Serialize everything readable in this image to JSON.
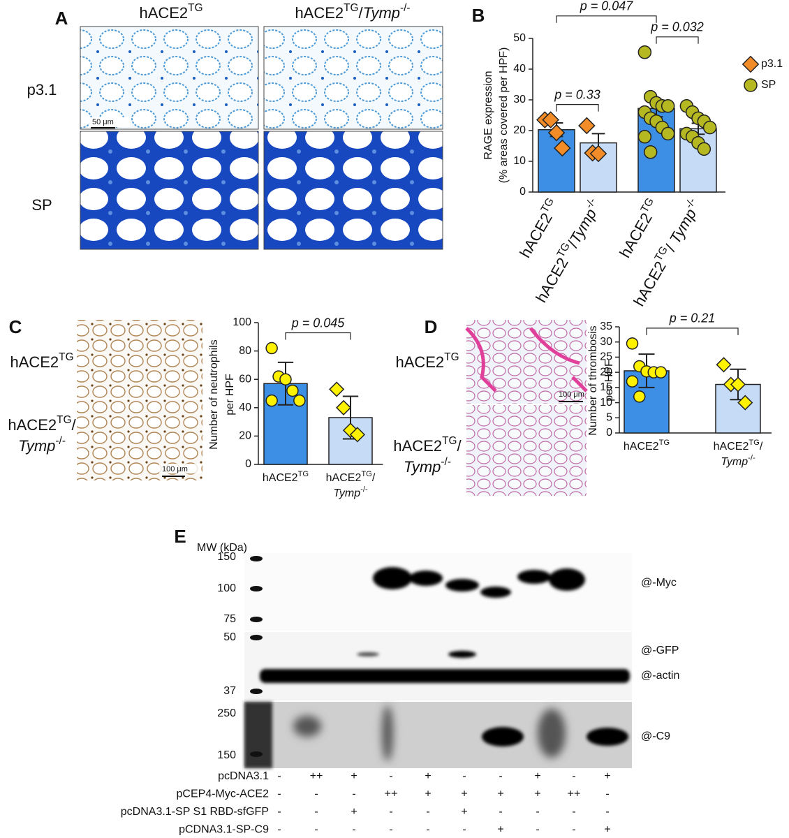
{
  "panel_a": {
    "letter": "A",
    "columns": [
      [
        [
          {
            "text": "hACE2"
          },
          {
            "text": "TG",
            "style": "sup"
          }
        ]
      ],
      [
        [
          {
            "text": "hACE2"
          },
          {
            "text": "TG",
            "style": "sup"
          },
          {
            "text": "/"
          },
          {
            "text": "Tymp",
            "style": "italic"
          },
          {
            "text": "-/-",
            "style": "sup"
          }
        ]
      ]
    ],
    "rows": [
      "p3.1",
      "SP"
    ],
    "scale_bar": "50 μm"
  },
  "panel_c": {
    "letter": "C",
    "rows": [
      [
        [
          {
            "text": "hACE2"
          },
          {
            "text": "TG",
            "style": "sup"
          }
        ]
      ],
      [
        [
          {
            "text": "hACE2"
          },
          {
            "text": "TG",
            "style": "sup"
          },
          {
            "text": "/"
          }
        ],
        [
          {
            "text": "Tymp",
            "style": "italic"
          },
          {
            "text": "-/-",
            "style": "sup"
          }
        ]
      ]
    ],
    "scale_bar": "100 μm"
  },
  "panel_d": {
    "letter": "D",
    "rows": [
      [
        [
          {
            "text": "hACE2"
          },
          {
            "text": "TG",
            "style": "sup"
          }
        ]
      ],
      [
        [
          {
            "text": "hACE2"
          },
          {
            "text": "TG",
            "style": "sup"
          },
          {
            "text": "/"
          }
        ],
        [
          {
            "text": "Tymp",
            "style": "italic"
          },
          {
            "text": "-/-",
            "style": "sup"
          }
        ]
      ]
    ],
    "scale_bar": "100 μm"
  },
  "panel_e": {
    "letter": "E",
    "mw_title": "MW (kDa)",
    "markers": [
      150,
      100,
      75,
      50,
      37,
      250,
      150
    ],
    "blots": [
      "@-Myc",
      "@-GFP",
      "@-actin",
      "@-C9"
    ],
    "conditions": [
      {
        "name": "pcDNA3.1",
        "marks": [
          "-",
          "++",
          "+",
          "-",
          "+",
          "-",
          "-",
          "+",
          "-",
          "+"
        ]
      },
      {
        "name": "pCEP4-Myc-ACE2",
        "marks": [
          "-",
          "-",
          "-",
          "++",
          "+",
          "+",
          "+",
          "+",
          "++",
          "-"
        ]
      },
      {
        "name": "pcDNA3.1-SP S1 RBD-sfGFP",
        "marks": [
          "-",
          "-",
          "+",
          "-",
          "-",
          "+",
          "-",
          "-",
          "-",
          "-"
        ]
      },
      {
        "name": "pCDNA3.1-SP-C9",
        "marks": [
          "-",
          "-",
          "-",
          "-",
          "-",
          "-",
          "+",
          "-",
          "-",
          "+"
        ]
      }
    ]
  },
  "chart_data": [
    {
      "type": "bar_dot",
      "letter": "B",
      "ylabel": [
        "RAGE expression",
        "(% areas covered per HPF)"
      ],
      "categories": [
        [
          [
            {
              "text": "hACE2"
            },
            {
              "text": "TG",
              "style": "sup"
            }
          ]
        ],
        [
          [
            {
              "text": "hACE2"
            },
            {
              "text": "TG",
              "style": "sup"
            },
            {
              "text": "/"
            },
            {
              "text": "Tymp",
              "style": "italic"
            },
            {
              "text": "-/-",
              "style": "sup"
            }
          ]
        ],
        [
          [
            {
              "text": "hACE2"
            },
            {
              "text": "TG",
              "style": "sup"
            }
          ]
        ],
        [
          [
            {
              "text": "hACE2"
            },
            {
              "text": "TG",
              "style": "sup"
            },
            {
              "text": "/ "
            },
            {
              "text": "Tymp",
              "style": "italic"
            },
            {
              "text": "-/-",
              "style": "sup"
            }
          ]
        ]
      ],
      "label_rotation": -60,
      "values": [
        20.3,
        16,
        27.2,
        20.6
      ],
      "errors": [
        2.2,
        3,
        2.7,
        1.8
      ],
      "bar_colors": [
        "#3d8fe6",
        "#c6dcf6",
        "#3d8fe6",
        "#c6dcf6"
      ],
      "points": [
        [
          23.5,
          23.5,
          19.3,
          14.3
        ],
        [
          21.6,
          12.7,
          12.5
        ],
        [
          45.5,
          31,
          29,
          28,
          28,
          26,
          24,
          23,
          21,
          19,
          18,
          13
        ],
        [
          28,
          26,
          24,
          23,
          21,
          19,
          18,
          16,
          14
        ]
      ],
      "series": [
        {
          "name": "p3.1",
          "color": "#f28c28",
          "marker": "diamond"
        },
        {
          "name": "SP",
          "color": "#b5b820",
          "marker": "circle"
        }
      ],
      "point_series": [
        0,
        0,
        1,
        1
      ],
      "brackets": [
        {
          "text": "p = 0.33",
          "between": [
            0,
            1
          ]
        },
        {
          "text": "p = 0.032",
          "between": [
            2,
            3
          ]
        },
        {
          "text": "p = 0.047",
          "between": [
            0,
            2
          ]
        }
      ],
      "ylim": [
        0,
        50
      ],
      "yticks": [
        0,
        10,
        20,
        30,
        40,
        50
      ]
    },
    {
      "type": "bar_dot",
      "ylabel": [
        "Number of neutrophils",
        "per HPF"
      ],
      "categories": [
        [
          [
            {
              "text": "hACE2"
            },
            {
              "text": "TG",
              "style": "sup"
            }
          ]
        ],
        [
          [
            {
              "text": "hACE2"
            },
            {
              "text": "TG",
              "style": "sup"
            },
            {
              "text": "/"
            }
          ],
          [
            {
              "text": "Tymp",
              "style": "italic"
            },
            {
              "text": "-/-",
              "style": "sup"
            }
          ]
        ]
      ],
      "values": [
        57,
        33
      ],
      "errors": [
        15,
        15
      ],
      "bar_colors": [
        "#3d8fe6",
        "#c6dcf6"
      ],
      "points": [
        [
          82,
          62,
          60,
          52,
          45,
          45
        ],
        [
          53,
          40,
          24,
          21
        ]
      ],
      "series": [
        {
          "color": "#fff200",
          "marker": "circle"
        },
        {
          "color": "#fff200",
          "marker": "diamond"
        }
      ],
      "point_series": [
        0,
        1
      ],
      "brackets": [
        {
          "text": "p = 0.045",
          "between": [
            0,
            1
          ]
        }
      ],
      "ylim": [
        0,
        100
      ],
      "yticks": [
        0,
        20,
        40,
        60,
        80,
        100
      ]
    },
    {
      "type": "bar_dot",
      "ylabel": [
        "Number of thrombosis",
        "per HPF"
      ],
      "categories": [
        [
          [
            {
              "text": "hACE2"
            },
            {
              "text": "TG",
              "style": "sup"
            }
          ]
        ],
        [
          [
            {
              "text": "hACE2"
            },
            {
              "text": "TG",
              "style": "sup"
            },
            {
              "text": "/"
            }
          ],
          [
            {
              "text": "Tymp",
              "style": "italic"
            },
            {
              "text": "-/-",
              "style": "sup"
            }
          ]
        ]
      ],
      "values": [
        20.5,
        16
      ],
      "errors": [
        5.5,
        5
      ],
      "bar_colors": [
        "#3d8fe6",
        "#c6dcf6"
      ],
      "points": [
        [
          29.5,
          22,
          20.3,
          20,
          20,
          17,
          12
        ],
        [
          22.5,
          16,
          16,
          10
        ]
      ],
      "series": [
        {
          "color": "#fff200",
          "marker": "circle"
        },
        {
          "color": "#fff200",
          "marker": "diamond"
        }
      ],
      "point_series": [
        0,
        1
      ],
      "brackets": [
        {
          "text": "p = 0.21",
          "between": [
            0,
            1
          ]
        }
      ],
      "ylim": [
        0,
        35
      ],
      "yticks": [
        0,
        5,
        10,
        15,
        20,
        25,
        30,
        35
      ]
    }
  ]
}
